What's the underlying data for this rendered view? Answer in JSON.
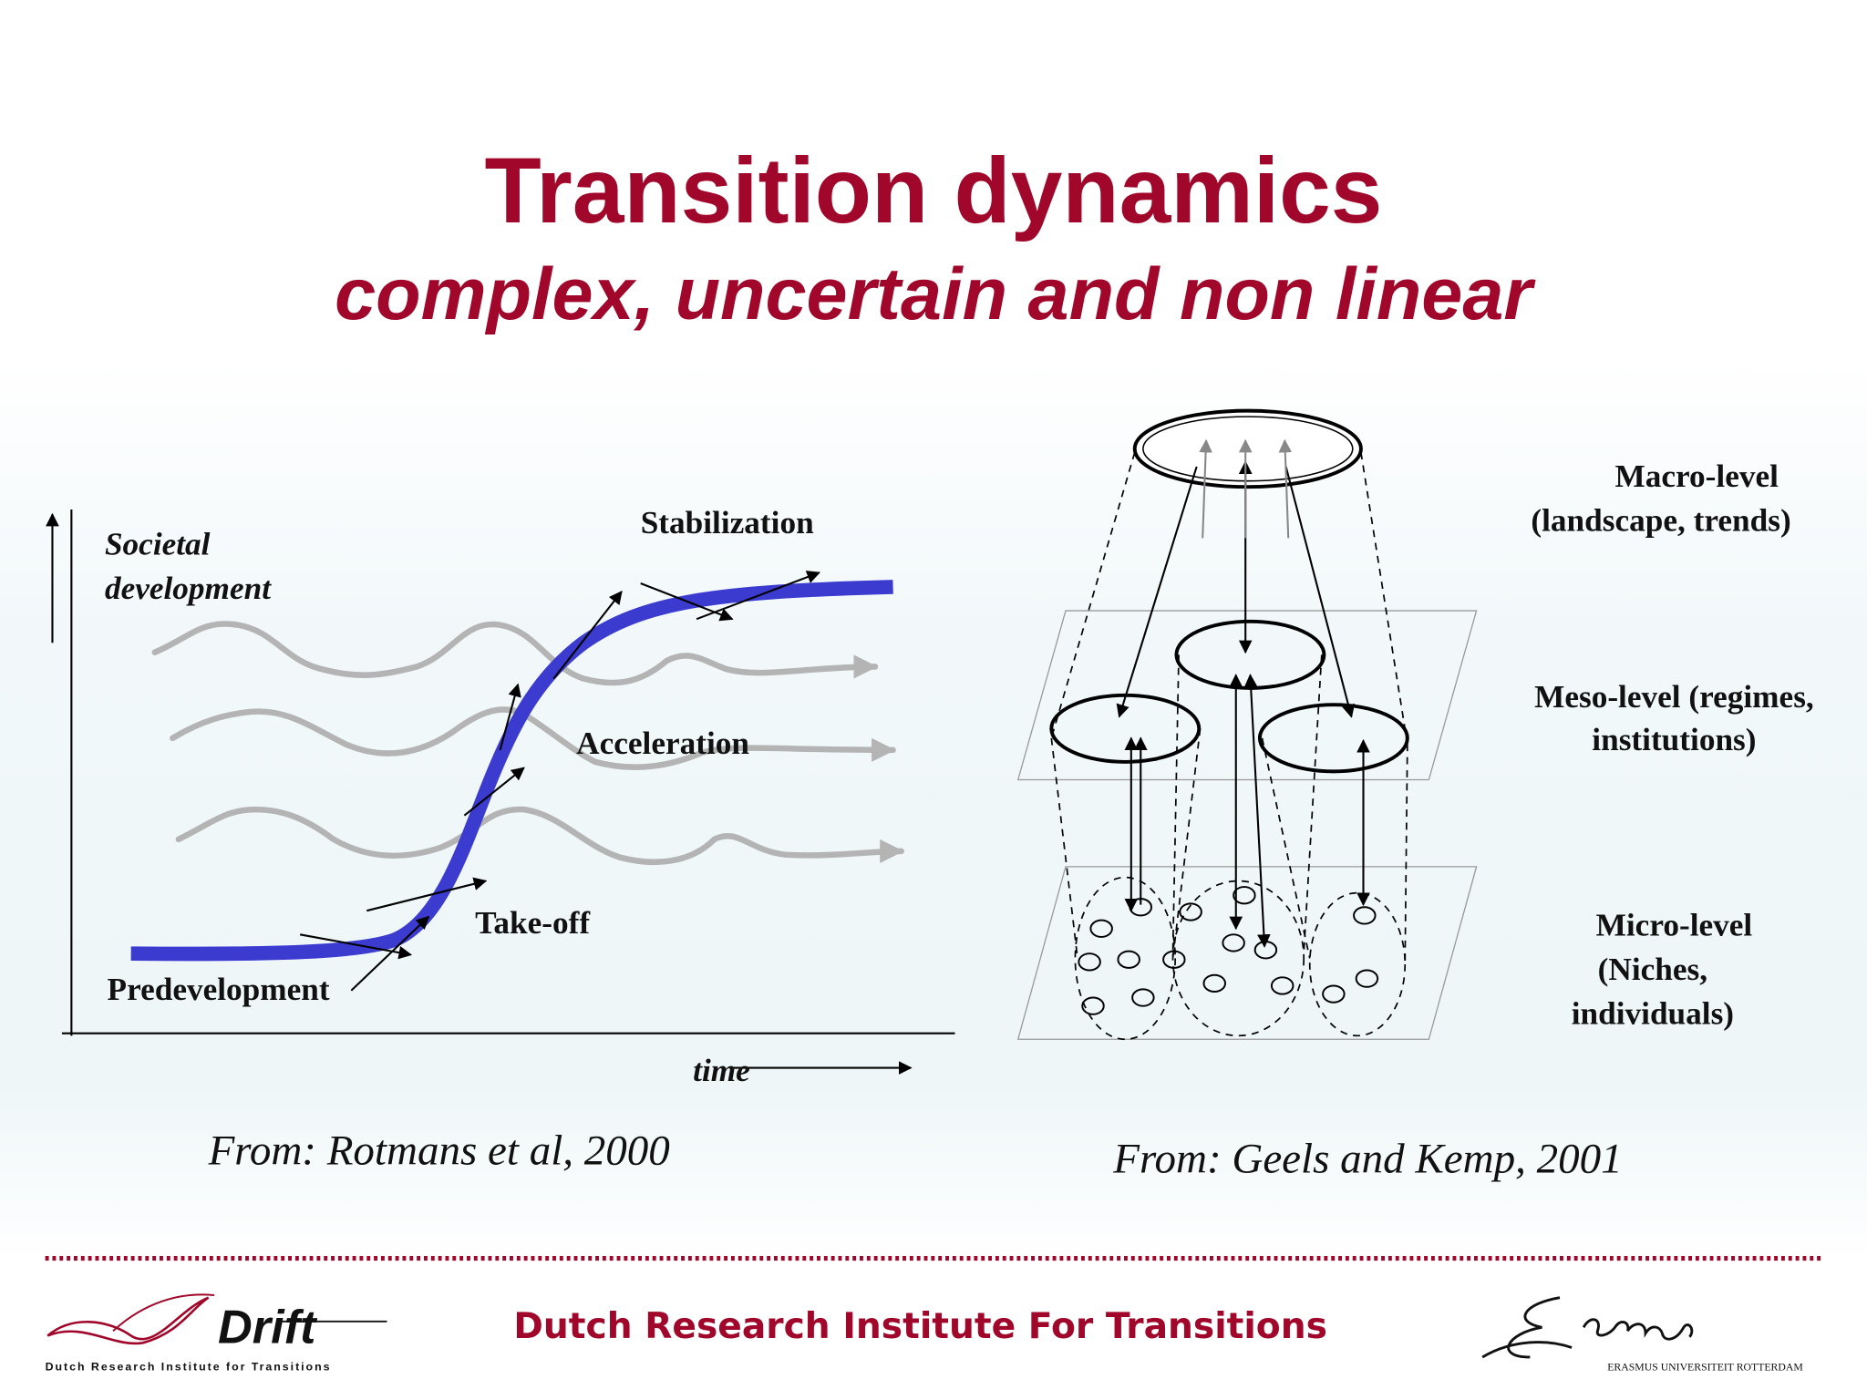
{
  "title": "Transition dynamics",
  "subtitle": "complex, uncertain and non linear",
  "left_diagram": {
    "y_axis_label": [
      "Societal",
      "development"
    ],
    "x_axis_label": "time",
    "phases": [
      "Stabilization",
      "Acceleration",
      "Take-off",
      "Predevelopment"
    ],
    "source": "From: Rotmans et al, 2000"
  },
  "right_diagram": {
    "levels": [
      {
        "lines": [
          "Macro-level",
          "(landscape, trends)"
        ]
      },
      {
        "lines": [
          "Meso-level (regimes,",
          "institutions)"
        ]
      },
      {
        "lines": [
          "Micro-level",
          "(Niches,",
          "individuals)"
        ]
      }
    ],
    "source": "From: Geels and Kemp, 2001"
  },
  "footer": {
    "institute": "Dutch Research Institute For Transitions",
    "logo_text": "Drift",
    "logo_caption": "Dutch Research Institute for Transitions",
    "university": "ERASMUS UNIVERSITEIT ROTTERDAM"
  }
}
